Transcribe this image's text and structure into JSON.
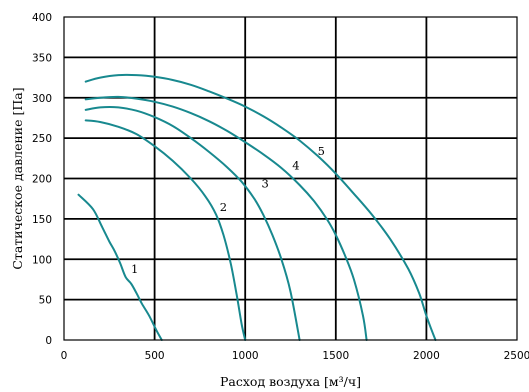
{
  "chart_data": {
    "type": "line",
    "xlabel": "Расход воздуха [м³/ч]",
    "ylabel": "Статическое давление [Па]",
    "xlim": [
      0,
      2500
    ],
    "ylim": [
      0,
      400
    ],
    "xticks": [
      "0",
      "500",
      "1000",
      "1500",
      "2000",
      "2500"
    ],
    "yticks": [
      "0",
      "50",
      "100",
      "150",
      "200",
      "250",
      "300",
      "350",
      "400"
    ],
    "grid": true,
    "line_color": "#18898f",
    "series": [
      {
        "name": "1",
        "x": [
          80,
          160,
          210,
          250,
          280,
          310,
          340,
          370,
          400,
          430,
          470,
          510,
          540
        ],
        "y": [
          180,
          162,
          140,
          122,
          110,
          95,
          78,
          70,
          58,
          45,
          30,
          12,
          0
        ]
      },
      {
        "name": "2",
        "x": [
          120,
          200,
          300,
          400,
          500,
          600,
          700,
          780,
          840,
          880,
          920,
          950,
          980,
          1000
        ],
        "y": [
          272,
          270,
          264,
          255,
          240,
          222,
          200,
          178,
          155,
          130,
          95,
          60,
          20,
          0
        ]
      },
      {
        "name": "3",
        "x": [
          120,
          200,
          300,
          400,
          500,
          600,
          700,
          800,
          900,
          980,
          1050,
          1100,
          1150,
          1200,
          1250,
          1300
        ],
        "y": [
          285,
          288,
          288,
          284,
          276,
          265,
          250,
          233,
          214,
          196,
          175,
          155,
          130,
          100,
          60,
          0
        ]
      },
      {
        "name": "4",
        "x": [
          120,
          200,
          300,
          400,
          500,
          600,
          700,
          800,
          900,
          1000,
          1100,
          1200,
          1300,
          1380,
          1450,
          1500,
          1550,
          1600,
          1650,
          1670
        ],
        "y": [
          298,
          300,
          301,
          299,
          295,
          289,
          281,
          271,
          259,
          245,
          230,
          213,
          192,
          172,
          150,
          130,
          105,
          75,
          30,
          0
        ]
      },
      {
        "name": "5",
        "x": [
          120,
          200,
          300,
          400,
          500,
          600,
          700,
          800,
          900,
          1000,
          1100,
          1200,
          1300,
          1400,
          1500,
          1600,
          1700,
          1800,
          1900,
          1960,
          2000,
          2050
        ],
        "y": [
          320,
          325,
          328,
          328,
          326,
          322,
          316,
          308,
          299,
          289,
          277,
          263,
          247,
          228,
          206,
          181,
          155,
          125,
          88,
          58,
          30,
          0
        ]
      }
    ],
    "annotations": [
      {
        "text": "1",
        "x": 390,
        "y": 83
      },
      {
        "text": "2",
        "x": 880,
        "y": 160
      },
      {
        "text": "3",
        "x": 1110,
        "y": 189
      },
      {
        "text": "4",
        "x": 1280,
        "y": 211
      },
      {
        "text": "5",
        "x": 1420,
        "y": 229
      }
    ]
  }
}
